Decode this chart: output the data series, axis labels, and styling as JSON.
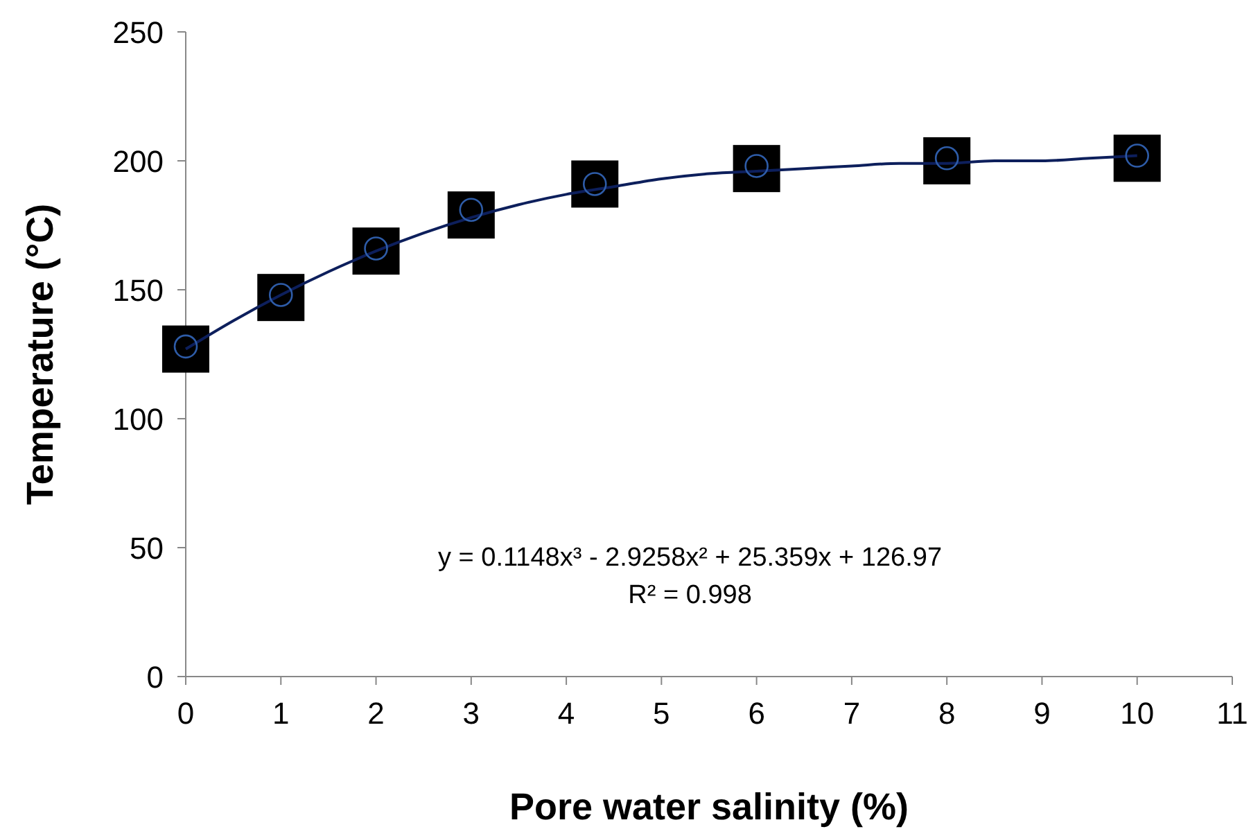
{
  "chart_data": {
    "type": "scatter",
    "xlabel": "Pore water salinity (%)",
    "ylabel": "Temperature (°C)",
    "xlim": [
      0,
      11
    ],
    "xticks": [
      0,
      1,
      2,
      3,
      4,
      5,
      6,
      7,
      8,
      9,
      10,
      11
    ],
    "ylim": [
      0,
      250
    ],
    "yticks": [
      0,
      50,
      100,
      150,
      200,
      250
    ],
    "grid": false,
    "series": [
      {
        "type": "scatter",
        "marker": "square",
        "color": "#000000",
        "x": [
          0,
          1,
          2,
          3,
          4.3,
          6,
          8,
          10
        ],
        "values": [
          127,
          147,
          165,
          179,
          191,
          197,
          200,
          201
        ],
        "errors": [
          null,
          null,
          null,
          null,
          null,
          null,
          6,
          null
        ]
      },
      {
        "type": "line",
        "line_style": "solid",
        "color": "#0d1f5c",
        "x": [
          0,
          0.5,
          1,
          1.5,
          2,
          2.5,
          3,
          3.5,
          4,
          4.5,
          5,
          5.5,
          6,
          6.5,
          7,
          7.5,
          8,
          8.5,
          9,
          9.5,
          10
        ],
        "values": [
          127,
          138,
          148,
          157,
          165,
          172,
          178,
          183,
          187,
          190,
          193,
          195,
          196,
          197,
          198,
          199,
          199,
          200,
          200,
          201,
          202
        ]
      },
      {
        "type": "scatter",
        "marker": "circle",
        "color": "#2e5ca8",
        "x": [
          0,
          1,
          2,
          3,
          4.3,
          6,
          8,
          10
        ],
        "values": [
          128,
          148,
          166,
          181,
          191,
          198,
          201,
          202
        ]
      }
    ],
    "annotations": [
      "y = 0.1148x³ - 2.9258x² + 25.359x + 126.97",
      "R² = 0.998"
    ]
  }
}
